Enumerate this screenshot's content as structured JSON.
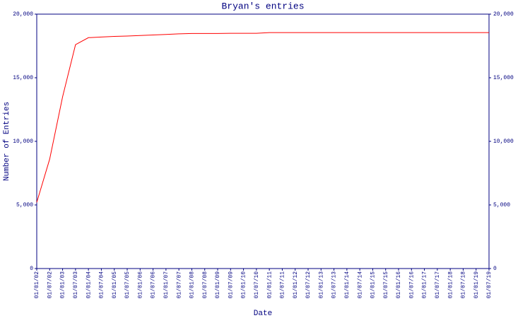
{
  "chart_data": {
    "type": "line",
    "title": "Bryan's entries",
    "xlabel": "Date",
    "ylabel": "Number of Entries",
    "categories": [
      "01/01/02",
      "01/07/02",
      "01/01/03",
      "01/07/03",
      "01/01/04",
      "01/07/04",
      "01/01/05",
      "01/07/05",
      "01/01/06",
      "01/07/06",
      "01/01/07",
      "01/07/07",
      "01/01/08",
      "01/07/08",
      "01/01/09",
      "01/07/09",
      "01/01/10",
      "01/07/10",
      "01/01/11",
      "01/07/11",
      "01/01/12",
      "01/07/12",
      "01/01/13",
      "01/07/13",
      "01/01/14",
      "01/07/14",
      "01/01/15",
      "01/07/15",
      "01/01/16",
      "01/07/16",
      "01/01/17",
      "01/07/17",
      "01/01/18",
      "01/07/18",
      "01/01/19",
      "01/07/19"
    ],
    "series": [
      {
        "name": "Bryan's entries",
        "color": "#ff0000",
        "values": [
          5200,
          8600,
          13500,
          17600,
          18150,
          18200,
          18250,
          18280,
          18320,
          18360,
          18400,
          18450,
          18480,
          18480,
          18480,
          18490,
          18490,
          18490,
          18550,
          18550,
          18550,
          18550,
          18550,
          18550,
          18550,
          18550,
          18550,
          18550,
          18550,
          18550,
          18550,
          18550,
          18550,
          18550,
          18550,
          18550
        ]
      }
    ],
    "ylim": [
      0,
      20000
    ],
    "yticks": [
      0,
      {
        "value": 5000,
        "label": "5,000"
      },
      {
        "value": 10000,
        "label": "10,000"
      },
      {
        "value": 15000,
        "label": "15,000"
      },
      {
        "value": 20000,
        "label": "20,000"
      }
    ],
    "y2lim": [
      0,
      20000
    ],
    "y2ticks": [
      0,
      {
        "value": 5000,
        "label": "5,000"
      },
      {
        "value": 10000,
        "label": "10,000"
      },
      {
        "value": 15000,
        "label": "15,000"
      },
      {
        "value": 20000,
        "label": "20,000"
      }
    ],
    "axis_color": "#000080",
    "grid": false
  }
}
